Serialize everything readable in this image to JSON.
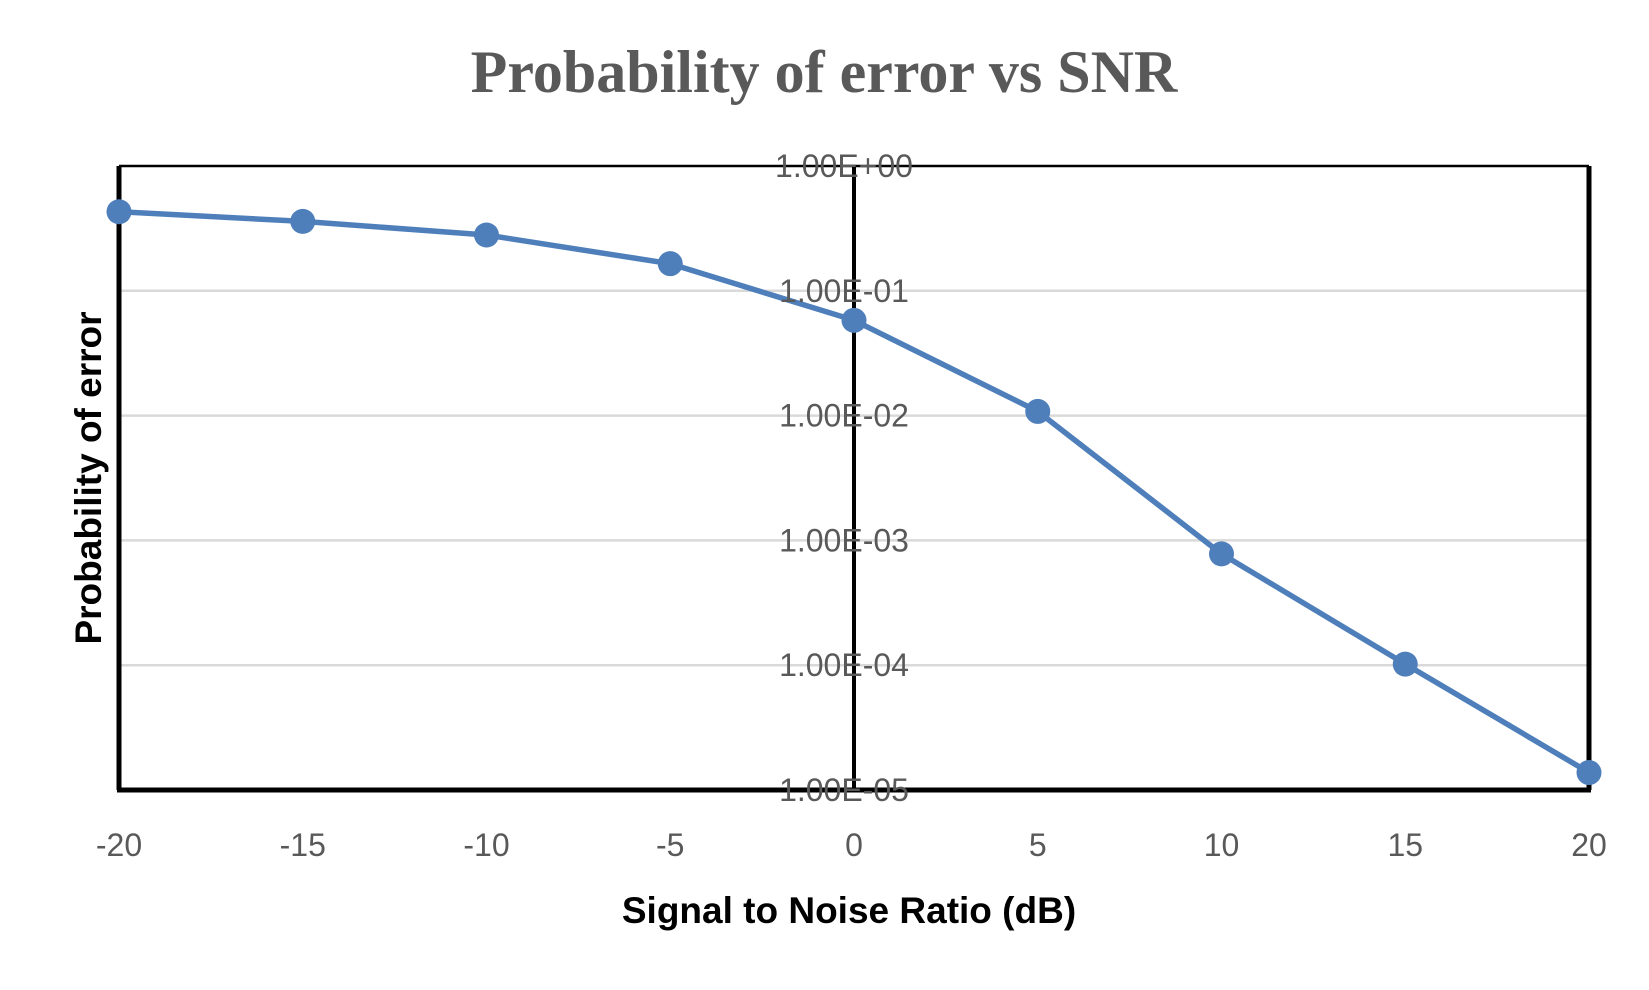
{
  "chart_data": {
    "type": "line",
    "title": "Probability of error vs SNR",
    "xlabel": "Signal to Noise Ratio (dB)",
    "ylabel": "Probability of error",
    "xlim": [
      -20,
      20
    ],
    "ylim": [
      1e-05,
      1
    ],
    "y_scale": "log",
    "grid": "horizontal",
    "legend": "none",
    "x_tick_labels": [
      "-20",
      "-15",
      "-10",
      "-5",
      "0",
      "5",
      "10",
      "15",
      "20"
    ],
    "y_tick_labels": [
      "1.00E+00",
      "1.00E-01",
      "1.00E-02",
      "1.00E-03",
      "1.00E-04",
      "1.00E-05"
    ],
    "series": [
      {
        "x": [
          -20,
          -15,
          -10,
          -5,
          0,
          5,
          10,
          15,
          20
        ],
        "y": [
          0.43,
          0.36,
          0.28,
          0.165,
          0.058,
          0.0108,
          0.00078,
          0.000102,
          1.38e-05
        ]
      }
    ],
    "colors": {
      "line": "#4e7fbb",
      "marker": "#4e7fbb",
      "frame": "#000000",
      "grid": "#d9d9d9",
      "title": "#595959",
      "ticks": "#595959"
    }
  }
}
